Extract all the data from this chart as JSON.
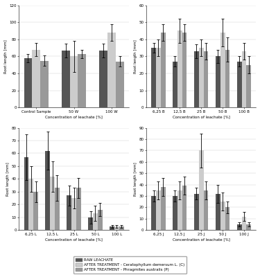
{
  "ylabel": "Root length [mm]",
  "xlabel": "Concentration of leachate [%]",
  "top_left": {
    "categories": [
      "Control Sample",
      "50 W",
      "100 W"
    ],
    "raw": [
      58,
      67,
      67
    ],
    "raw_err": [
      5,
      8,
      8
    ],
    "C": [
      68,
      60,
      88
    ],
    "C_err": [
      8,
      18,
      10
    ],
    "P": [
      55,
      63,
      54
    ],
    "P_err": [
      6,
      5,
      6
    ],
    "ylim": [
      0,
      120
    ],
    "yticks": [
      0,
      20,
      40,
      60,
      80,
      100,
      120
    ]
  },
  "top_right": {
    "categories": [
      "6,25 B",
      "12,5 B",
      "25 B",
      "50 B",
      "100 B"
    ],
    "raw": [
      35,
      27,
      33,
      30,
      27
    ],
    "raw_err": [
      3,
      3,
      4,
      4,
      3
    ],
    "C": [
      35,
      45,
      35,
      44,
      33
    ],
    "C_err": [
      5,
      7,
      5,
      8,
      5
    ],
    "P": [
      44,
      44,
      33,
      34,
      25
    ],
    "P_err": [
      5,
      5,
      5,
      7,
      5
    ],
    "ylim": [
      0,
      60
    ],
    "yticks": [
      0,
      10,
      20,
      30,
      40,
      50,
      60
    ]
  },
  "bottom_left": {
    "categories": [
      "6,25 L",
      "12,5 L",
      "25 L",
      "50 L",
      "100 L"
    ],
    "raw": [
      57,
      62,
      27,
      10,
      3
    ],
    "raw_err": [
      18,
      15,
      8,
      5,
      1
    ],
    "C": [
      40,
      42,
      25,
      13,
      3
    ],
    "C_err": [
      10,
      12,
      8,
      6,
      1
    ],
    "P": [
      30,
      33,
      33,
      16,
      3
    ],
    "P_err": [
      8,
      10,
      8,
      5,
      1
    ],
    "ylim": [
      0,
      80
    ],
    "yticks": [
      0,
      10,
      20,
      30,
      40,
      50,
      60,
      70,
      80
    ]
  },
  "bottom_right": {
    "categories": [
      "6,25 J",
      "12,5 J",
      "25 J",
      "50 J",
      "100 J"
    ],
    "raw": [
      30,
      30,
      32,
      32,
      5
    ],
    "raw_err": [
      5,
      5,
      5,
      8,
      2
    ],
    "C": [
      35,
      35,
      70,
      25,
      12
    ],
    "C_err": [
      8,
      8,
      15,
      8,
      4
    ],
    "P": [
      38,
      39,
      35,
      20,
      5
    ],
    "P_err": [
      8,
      8,
      8,
      5,
      2
    ],
    "ylim": [
      0,
      90
    ],
    "yticks": [
      0,
      10,
      20,
      30,
      40,
      50,
      60,
      70,
      80,
      90
    ]
  },
  "colors": {
    "raw": "#555555",
    "C": "#cccccc",
    "P": "#999999"
  },
  "legend_labels": [
    "RAW LEACHATE",
    "AFTER TREATMENT - Ceratophyllum demersum L. (C)",
    "AFTER TREATMENT - Phragmites australis (P)"
  ],
  "bar_width": 0.22
}
